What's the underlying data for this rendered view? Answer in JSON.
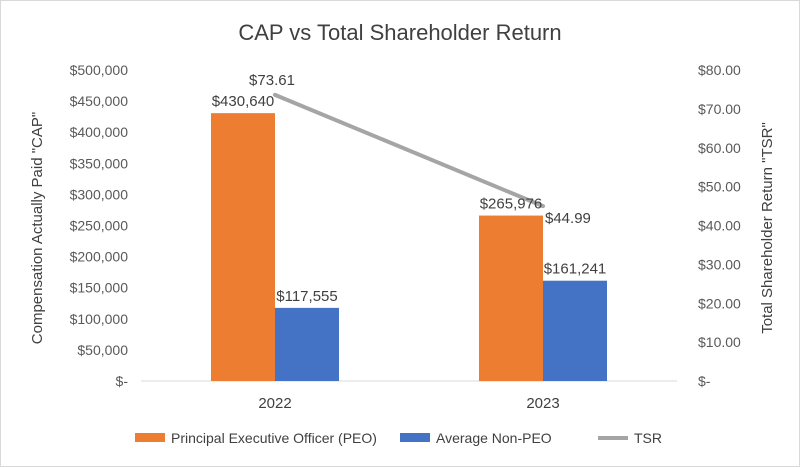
{
  "chart_data": {
    "type": "bar+line",
    "title": "CAP vs Total Shareholder Return",
    "categories": [
      "2022",
      "2023"
    ],
    "ylabel_left": "Compensation Actually Paid \"CAP\"",
    "ylabel_right": "Total Shareholder Return \"TSR\"",
    "ylim_left": [
      0,
      500000
    ],
    "ylim_right": [
      0,
      80
    ],
    "left_ticks": [
      "$-",
      "$50,000",
      "$100,000",
      "$150,000",
      "$200,000",
      "$250,000",
      "$300,000",
      "$350,000",
      "$400,000",
      "$450,000",
      "$500,000"
    ],
    "right_ticks": [
      "$-",
      "$10.00",
      "$20.00",
      "$30.00",
      "$40.00",
      "$50.00",
      "$60.00",
      "$70.00",
      "$80.00"
    ],
    "series": [
      {
        "name": "Principal Executive Officer (PEO)",
        "kind": "bar",
        "axis": "left",
        "color": "#ED7D31",
        "values": [
          430640,
          265976
        ],
        "labels": [
          "$430,640",
          "$265,976"
        ]
      },
      {
        "name": "Average Non-PEO",
        "kind": "bar",
        "axis": "left",
        "color": "#4472C4",
        "values": [
          117555,
          161241
        ],
        "labels": [
          "$117,555",
          "$161,241"
        ]
      },
      {
        "name": "TSR",
        "kind": "line",
        "axis": "right",
        "color": "#A5A5A5",
        "values": [
          73.61,
          44.99
        ],
        "labels": [
          "$73.61",
          "$44.99"
        ]
      }
    ],
    "legend_position": "bottom",
    "grid": false
  }
}
